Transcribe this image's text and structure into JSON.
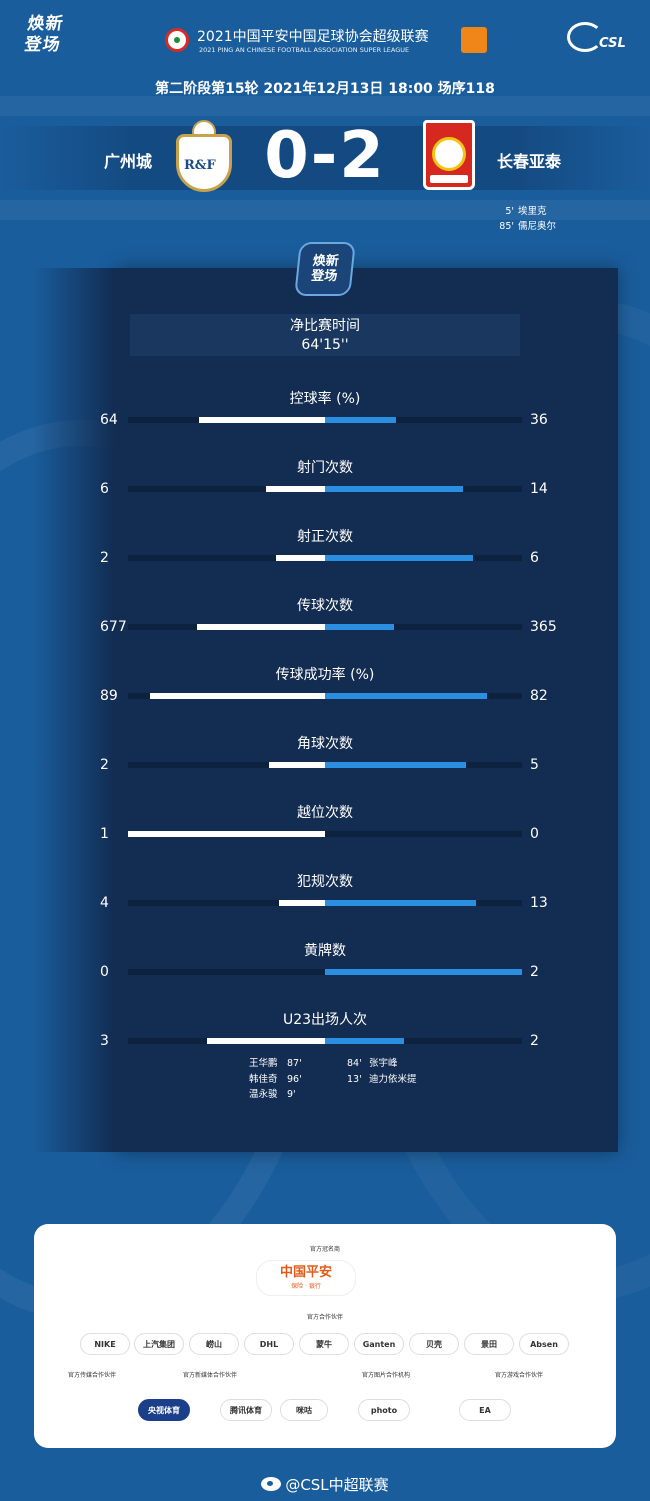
{
  "brand": {
    "slogan": "焕新登场"
  },
  "league": {
    "title_cn": "2021中国平安中国足球协会超级联赛",
    "title_en": "2021 PING AN CHINESE FOOTBALL ASSOCIATION SUPER LEAGUE",
    "csl_text": "CSL"
  },
  "match": {
    "info": "第二阶段第15轮  2021年12月13日 18:00 场序118",
    "home_team": "广州城",
    "away_team": "长春亚泰",
    "score": "0-2",
    "home_crest_text": "R&F",
    "scorers": [
      {
        "minute": "5'",
        "name": "埃里克"
      },
      {
        "minute": "85'",
        "name": "儒尼奥尔"
      }
    ]
  },
  "net_time": {
    "label": "净比赛时间",
    "value": "64'15''"
  },
  "stats": [
    {
      "label": "控球率 (%)",
      "home": "64",
      "away": "36",
      "home_frac": 0.64,
      "away_frac": 0.36
    },
    {
      "label": "射门次数",
      "home": "6",
      "away": "14",
      "home_frac": 0.3,
      "away_frac": 0.7
    },
    {
      "label": "射正次数",
      "home": "2",
      "away": "6",
      "home_frac": 0.25,
      "away_frac": 0.75
    },
    {
      "label": "传球次数",
      "home": "677",
      "away": "365",
      "home_frac": 0.65,
      "away_frac": 0.35
    },
    {
      "label": "传球成功率 (%)",
      "home": "89",
      "away": "82",
      "home_frac": 0.89,
      "away_frac": 0.82
    },
    {
      "label": "角球次数",
      "home": "2",
      "away": "5",
      "home_frac": 0.286,
      "away_frac": 0.714
    },
    {
      "label": "越位次数",
      "home": "1",
      "away": "0",
      "home_frac": 1.0,
      "away_frac": 0.0
    },
    {
      "label": "犯规次数",
      "home": "4",
      "away": "13",
      "home_frac": 0.235,
      "away_frac": 0.765
    },
    {
      "label": "黄牌数",
      "home": "0",
      "away": "2",
      "home_frac": 0.0,
      "away_frac": 1.0
    },
    {
      "label": "U23出场人次",
      "home": "3",
      "away": "2",
      "home_frac": 0.6,
      "away_frac": 0.4
    }
  ],
  "u23_home": [
    {
      "name": "王华鹏",
      "minute": "87'"
    },
    {
      "name": "韩佳奇",
      "minute": "96'"
    },
    {
      "name": "温永骏",
      "minute": "9'"
    }
  ],
  "u23_away": [
    {
      "minute": "84'",
      "name": "张宇峰"
    },
    {
      "minute": "13'",
      "name": "迪力依米提"
    }
  ],
  "sponsors": {
    "title_sponsor_label": "官方冠名商",
    "title_sponsor": "中国平安",
    "title_sponsor_sub": "保险 · 银行",
    "partners_label": "官方合作伙伴",
    "partners": [
      "NIKE",
      "上汽集团",
      "崂山",
      "DHL",
      "蒙牛",
      "Ganten",
      "贝壳",
      "景田",
      "Absen"
    ],
    "media_partner_label": "官方传媒合作伙伴",
    "media_partner": "央视体育",
    "new_media_label": "官方新媒体合作伙伴",
    "new_media": [
      "腾讯体育",
      "咪咕"
    ],
    "photo_label": "官方图片合作机构",
    "photo": "photo",
    "game_label": "官方游戏合作伙伴",
    "game": "EA"
  },
  "footer": {
    "weibo": "@CSL中超联赛"
  },
  "colors": {
    "background": "#1a5d9c",
    "panel": "#122c52",
    "home_bar": "#ffffff",
    "away_bar": "#2a8fe0",
    "accent_orange": "#f08519"
  }
}
